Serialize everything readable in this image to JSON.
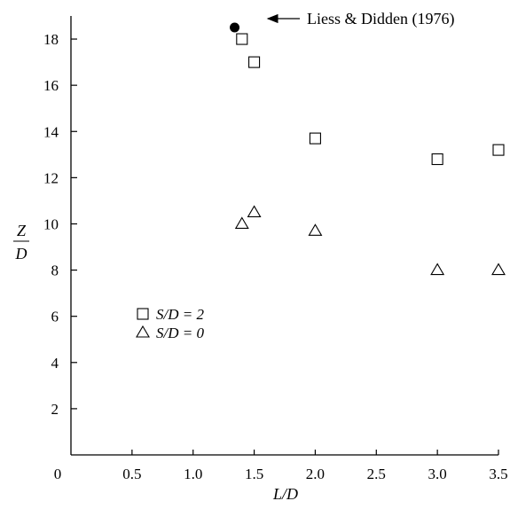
{
  "chart_data": {
    "type": "scatter",
    "xlabel": "L/D",
    "ylabel_num": "Z",
    "ylabel_den": "D",
    "xlim": [
      0,
      3.5
    ],
    "ylim": [
      0,
      19
    ],
    "x_ticks": [
      0.5,
      1.0,
      1.5,
      2.0,
      2.5,
      3.0,
      3.5
    ],
    "x_tick_labels": [
      "0.5",
      "1.0",
      "1.5",
      "2.0",
      "2.5",
      "3.0",
      "3.5"
    ],
    "y_ticks": [
      2,
      4,
      6,
      8,
      10,
      12,
      14,
      16,
      18
    ],
    "y_tick_labels": [
      "2",
      "4",
      "6",
      "8",
      "10",
      "12",
      "14",
      "16",
      "18"
    ],
    "origin_label": "0",
    "grid": false,
    "legend_position": "lower-left",
    "series": [
      {
        "name": "S/D = 2",
        "marker": "square",
        "x": [
          1.4,
          1.5,
          2.0,
          3.0,
          3.5
        ],
        "y": [
          18.0,
          17.0,
          13.7,
          12.8,
          13.2
        ]
      },
      {
        "name": "S/D = 0",
        "marker": "triangle",
        "x": [
          1.4,
          1.5,
          2.0,
          3.0,
          3.5
        ],
        "y": [
          10.0,
          10.5,
          9.7,
          8.0,
          8.0
        ]
      },
      {
        "marker": "filled-circle",
        "x": [
          1.34
        ],
        "y": [
          18.5
        ]
      }
    ],
    "annotations": [
      {
        "text": "Liess & Didden (1976)",
        "points_to": {
          "x": 1.34,
          "y": 18.5
        }
      }
    ]
  }
}
